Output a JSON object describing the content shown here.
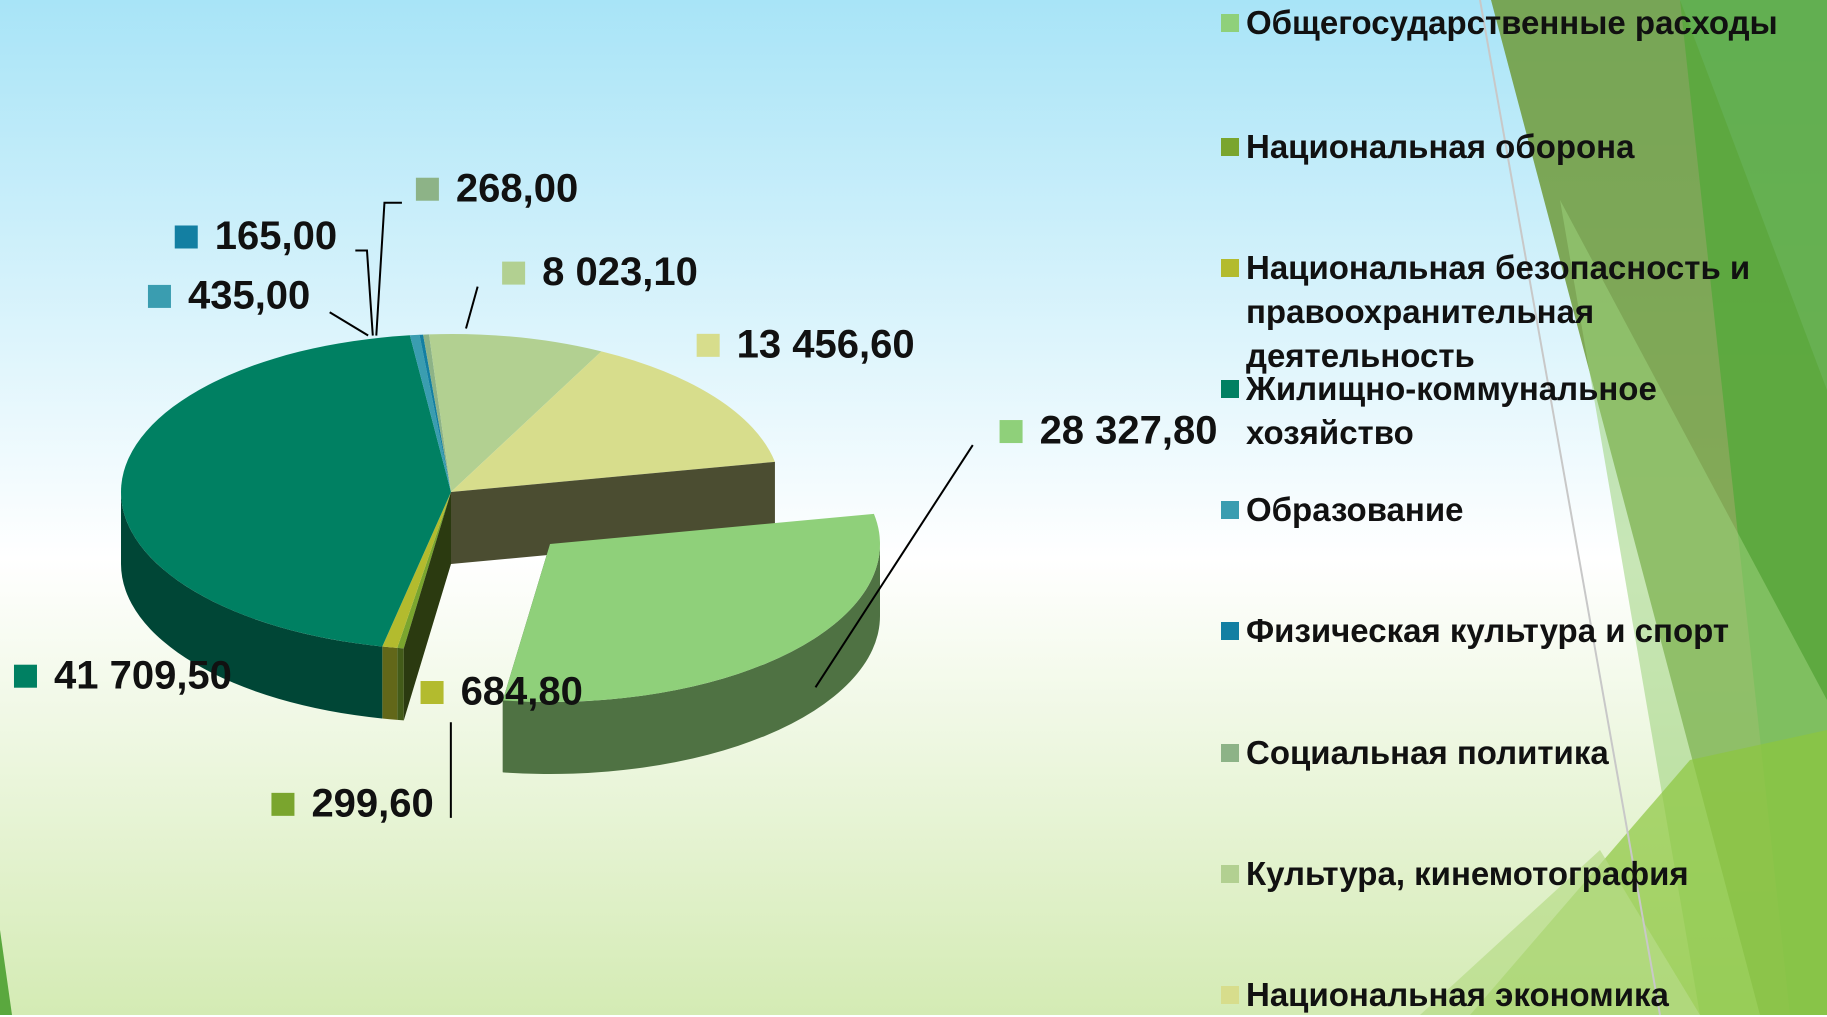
{
  "chart_data": {
    "type": "pie3d",
    "categories": [
      "Общегосударственные расходы",
      "Национальная оборона",
      "Национальная безопасность и правоохранительная деятельность",
      "Жилищно-коммунальное хозяйство",
      "Образование",
      "Физическая культура и спорт",
      "Социальная политика",
      "Культура, кинемотография",
      "Национальная экономика"
    ],
    "values": [
      28327.8,
      299.6,
      684.8,
      41709.5,
      435,
      165,
      268,
      8023.1,
      13456.6
    ],
    "value_labels": [
      "28 327,80",
      "299,60",
      "684,80",
      "41 709,50",
      "435,00",
      "165,00",
      "268,00",
      "8 023,10",
      "13 456,60"
    ],
    "colors": [
      "#8fd07a",
      "#7aa52e",
      "#b3bb2e",
      "#008062",
      "#3a9db0",
      "#137fa2",
      "#8db387",
      "#b2d091",
      "#d7dd8c"
    ],
    "legend": "right"
  }
}
